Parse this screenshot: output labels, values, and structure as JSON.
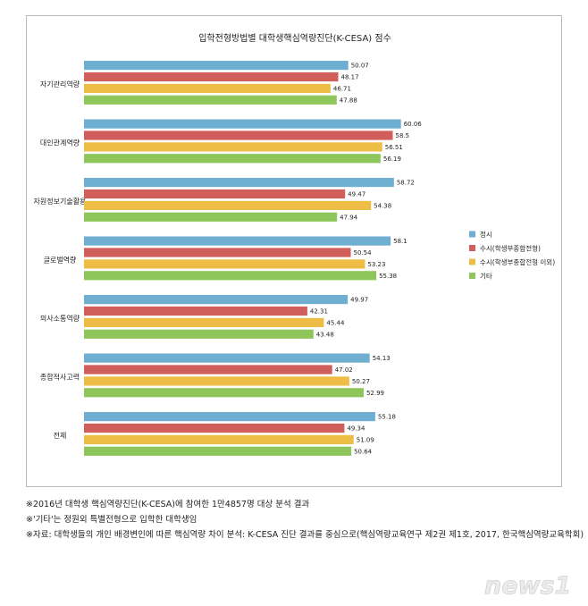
{
  "chart_data": {
    "type": "bar",
    "orientation": "horizontal",
    "title": "입학전형방법별 대학생핵심역량진단(K-CESA) 점수",
    "categories": [
      "자기관리역량",
      "대인관계역량",
      "자원정보기술활용",
      "글로벌역량",
      "의사소통역량",
      "종합적사고력",
      "전체"
    ],
    "series": [
      {
        "name": "정시",
        "color": "#6eaed0",
        "values": [
          50.07,
          60.06,
          58.72,
          58.1,
          49.97,
          54.13,
          55.18
        ]
      },
      {
        "name": "수시(학생부종합전형)",
        "color": "#d05f5b",
        "values": [
          48.17,
          58.5,
          49.47,
          50.54,
          42.31,
          47.02,
          49.34
        ]
      },
      {
        "name": "수시(학생부종합전형 이외)",
        "color": "#eebd45",
        "values": [
          46.71,
          56.51,
          54.38,
          53.23,
          45.44,
          50.27,
          51.09
        ]
      },
      {
        "name": "기타",
        "color": "#8fc65c",
        "values": [
          47.88,
          56.19,
          47.94,
          55.38,
          43.48,
          52.99,
          50.64
        ]
      }
    ],
    "value_labels": {
      "정시": [
        "50.07",
        "60.06",
        "58.72",
        "58.1",
        "49.97",
        "54.13",
        "55.18"
      ],
      "수시(학생부종합전형)": [
        "48.17",
        "58.5",
        "49.47",
        "50.54",
        "42.31",
        "47.02",
        "49.34"
      ],
      "수시(학생부종합전형 이외)": [
        "46.71",
        "56.51",
        "54.38",
        "53.23",
        "45.44",
        "50.27",
        "51.09"
      ],
      "기타": [
        "47.88",
        "56.19",
        "47.94",
        "55.38",
        "43.48",
        "52.99",
        "50.64"
      ]
    },
    "xlim": [
      0,
      64
    ],
    "grid": false,
    "legend_position": "right"
  },
  "notes": [
    "※2016년 대학생 핵심역량진단(K-CESA)에 참여한 1만4857명 대상 분석 결과",
    "※'기타'는 정원외 특별전형으로 입학한 대학생임",
    "※자료: 대학생들의 개인 배경변인에 따른 핵심역량 차이 분석: K-CESA 진단 결과를 중심으로(핵심역량교육연구 제2권 제1호, 2017, 한국핵심역량교육학회)"
  ],
  "watermark": {
    "text": "news1"
  }
}
